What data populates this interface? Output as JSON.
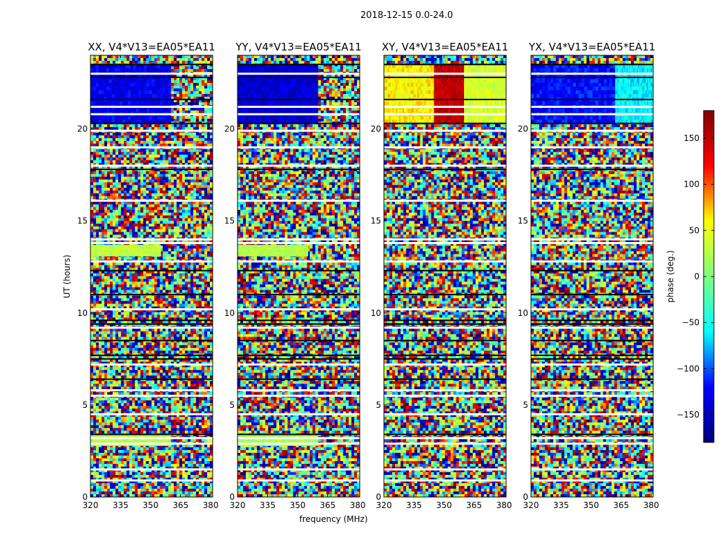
{
  "figure": {
    "title": "2018-12-15 0.0-24.0",
    "xlabel": "frequency (MHz)",
    "ylabel": "UT (hours)"
  },
  "colorbar": {
    "label": "phase (deg.)",
    "range": [
      -180,
      180
    ],
    "ticks": [
      150,
      100,
      50,
      0,
      -50,
      -100,
      -150
    ],
    "tick_labels": [
      "150",
      "100",
      "50",
      "0",
      "−50",
      "−100",
      "−150"
    ],
    "colormap": "jet",
    "colors": [
      "#00007f",
      "#0000ff",
      "#00ffff",
      "#7fff7f",
      "#ffff00",
      "#ff0000",
      "#7f0000"
    ]
  },
  "chart_data": [
    {
      "type": "heatmap",
      "title": "XX, V4*V13=EA05*EA11",
      "xlabel": "frequency (MHz)",
      "ylabel": "UT (hours)",
      "xlim": [
        320,
        381
      ],
      "ylim": [
        0,
        24
      ],
      "x_ticks": [
        320,
        335,
        350,
        365,
        380
      ],
      "y_ticks": [
        0,
        5,
        10,
        15,
        20
      ],
      "z_label": "phase (deg.)",
      "z_range": [
        -180,
        180
      ],
      "coherent_phase_ranges": [
        {
          "ut": [
            20.3,
            23.5
          ],
          "freq": [
            320,
            360
          ],
          "phase_deg": -130
        },
        {
          "ut": [
            13.1,
            13.7
          ],
          "freq": [
            320,
            355
          ],
          "phase_deg": 30
        },
        {
          "ut": [
            2.8,
            3.4
          ],
          "freq": [
            320,
            360
          ],
          "phase_deg": 25
        }
      ]
    },
    {
      "type": "heatmap",
      "title": "YY, V4*V13=EA05*EA11",
      "xlabel": "frequency (MHz)",
      "ylabel": "",
      "xlim": [
        320,
        381
      ],
      "ylim": [
        0,
        24
      ],
      "x_ticks": [
        320,
        335,
        350,
        365,
        380
      ],
      "y_ticks": [
        0,
        5,
        10,
        15,
        20
      ],
      "z_label": "phase (deg.)",
      "z_range": [
        -180,
        180
      ],
      "coherent_phase_ranges": [
        {
          "ut": [
            20.3,
            23.5
          ],
          "freq": [
            320,
            360
          ],
          "phase_deg": -140
        },
        {
          "ut": [
            13.1,
            13.7
          ],
          "freq": [
            320,
            355
          ],
          "phase_deg": 25
        },
        {
          "ut": [
            2.8,
            3.4
          ],
          "freq": [
            320,
            360
          ],
          "phase_deg": 20
        }
      ]
    },
    {
      "type": "heatmap",
      "title": "XY, V4*V13=EA05*EA11",
      "xlabel": "frequency (MHz)",
      "ylabel": "",
      "xlim": [
        320,
        381
      ],
      "ylim": [
        0,
        24
      ],
      "x_ticks": [
        320,
        335,
        350,
        365,
        380
      ],
      "y_ticks": [
        0,
        5,
        10,
        15,
        20
      ],
      "z_label": "phase (deg.)",
      "z_range": [
        -180,
        180
      ],
      "coherent_phase_ranges": [
        {
          "ut": [
            20.3,
            23.5
          ],
          "freq": [
            320,
            345
          ],
          "phase_deg": 60
        },
        {
          "ut": [
            20.3,
            23.5
          ],
          "freq": [
            345,
            360
          ],
          "phase_deg": 150
        },
        {
          "ut": [
            20.3,
            23.5
          ],
          "freq": [
            360,
            381
          ],
          "phase_deg": 40
        }
      ]
    },
    {
      "type": "heatmap",
      "title": "YX, V4*V13=EA05*EA11",
      "xlabel": "frequency (MHz)",
      "ylabel": "",
      "xlim": [
        320,
        381
      ],
      "ylim": [
        0,
        24
      ],
      "x_ticks": [
        320,
        335,
        350,
        365,
        380
      ],
      "y_ticks": [
        0,
        5,
        10,
        15,
        20
      ],
      "z_label": "phase (deg.)",
      "z_range": [
        -180,
        180
      ],
      "coherent_phase_ranges": [
        {
          "ut": [
            20.3,
            23.5
          ],
          "freq": [
            320,
            362
          ],
          "phase_deg": -120
        },
        {
          "ut": [
            20.3,
            23.5
          ],
          "freq": [
            362,
            381
          ],
          "phase_deg": -60
        }
      ]
    }
  ]
}
